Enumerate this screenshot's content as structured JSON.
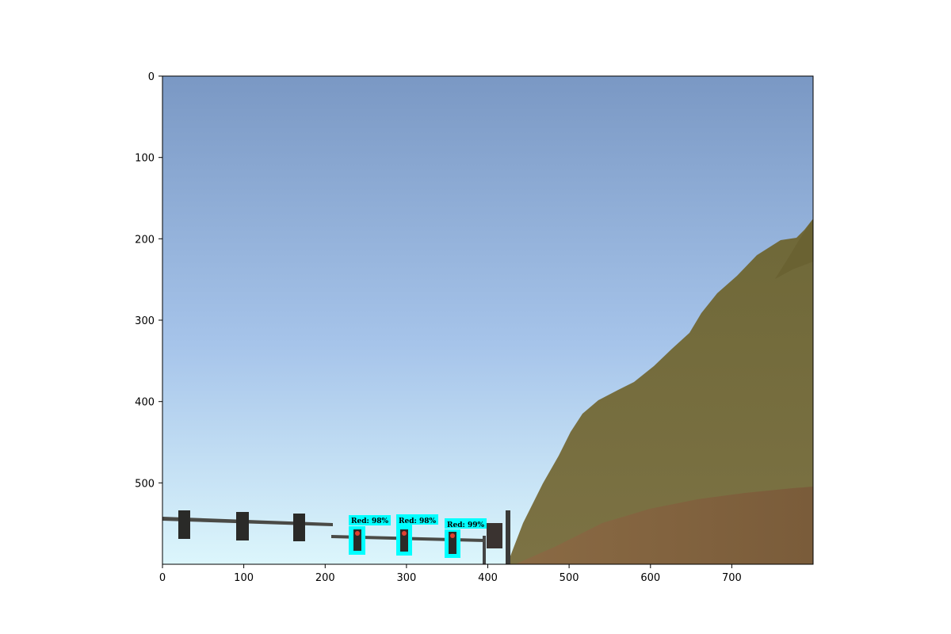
{
  "image": {
    "x_ticks": [
      "0",
      "100",
      "200",
      "300",
      "400",
      "500",
      "600",
      "700"
    ],
    "y_ticks": [
      "0",
      "100",
      "200",
      "300",
      "400",
      "500"
    ]
  },
  "scene": {
    "sky_color_top": "#7a98c4",
    "sky_color_bottom": "#d8f4fc",
    "hill_color": "#7a7040",
    "dirt_color": "#86643f",
    "detection_box_color": "#00ffff",
    "red_light_color": "#e04030"
  },
  "detections": [
    {
      "label": "Red:  98%"
    },
    {
      "label": "Red:  98%"
    },
    {
      "label": "Red:  99%"
    }
  ]
}
